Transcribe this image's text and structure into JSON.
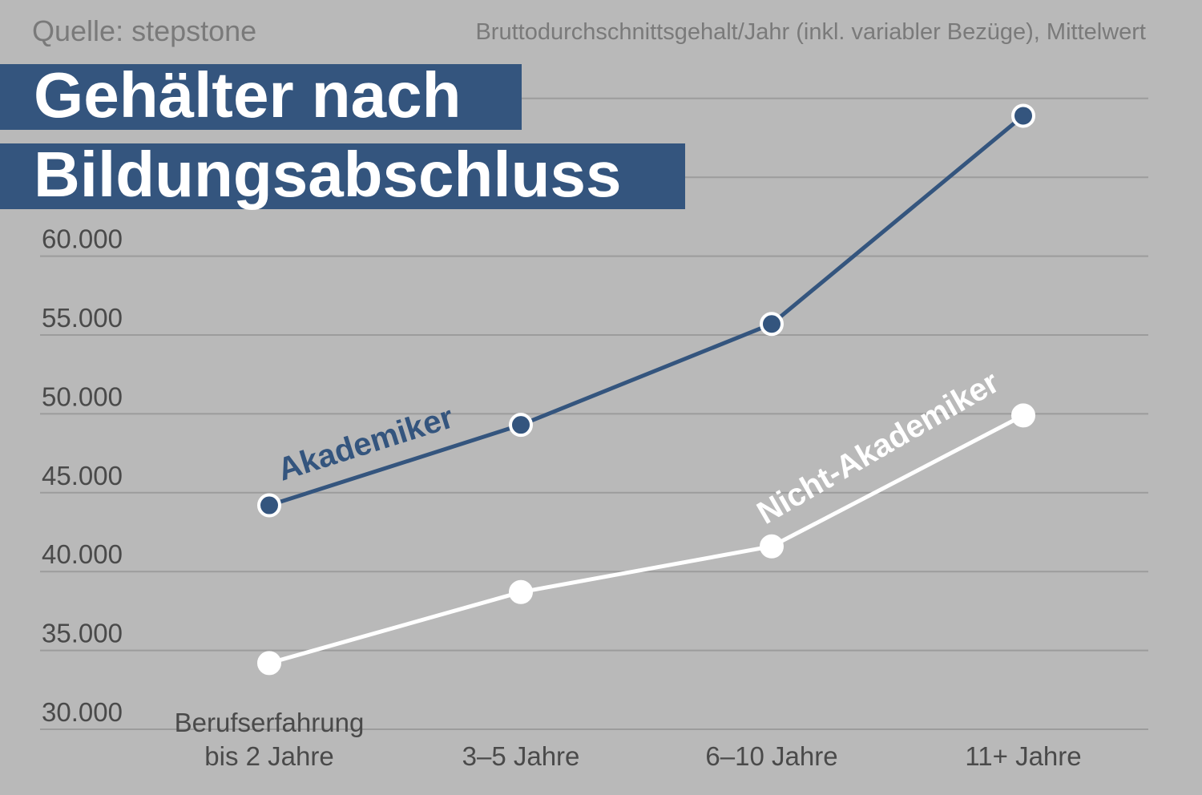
{
  "header": {
    "source": "Quelle: stepstone",
    "subtitle": "Bruttodurchschnittsgehalt/Jahr (inkl. variabler Bezüge), Mittelwert",
    "title_line1": "Gehälter nach",
    "title_line2": "Bildungsabschluss"
  },
  "colors": {
    "background": "#b9b9b9",
    "akademiker": "#34557e",
    "nicht_akademiker": "#ffffff",
    "grid": "#9c9c9c",
    "tick_text": "#4a4a4a"
  },
  "chart_data": {
    "type": "line",
    "title": "Gehälter nach Bildungsabschluss",
    "subtitle": "Bruttodurchschnittsgehalt/Jahr (inkl. variabler Bezüge), Mittelwert",
    "categories": [
      [
        "Berufserfahrung",
        "bis 2 Jahre"
      ],
      [
        "3–5 Jahre"
      ],
      [
        "6–10 Jahre"
      ],
      [
        "11+ Jahre"
      ]
    ],
    "series": [
      {
        "name": "Akademiker",
        "values": [
          44200,
          49300,
          55700,
          68900
        ]
      },
      {
        "name": "Nicht-Akademiker",
        "values": [
          34200,
          38700,
          41600,
          49900
        ]
      }
    ],
    "yticks": [
      30000,
      35000,
      40000,
      45000,
      50000,
      55000,
      60000
    ],
    "ytick_labels": [
      "30.000",
      "35.000",
      "40.000",
      "45.000",
      "50.000",
      "55.000",
      "60.000"
    ],
    "ylim": [
      30000,
      70000
    ],
    "grid": true,
    "legend": "inline labels on lines"
  }
}
